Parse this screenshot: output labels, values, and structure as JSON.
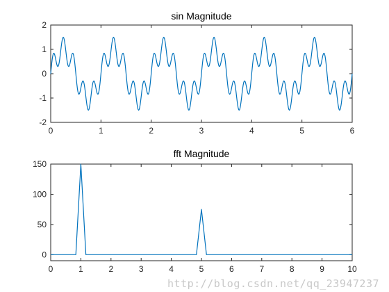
{
  "chart_data": [
    {
      "type": "line",
      "title": "sin Magnitude",
      "xlabel": "",
      "ylabel": "",
      "xlim": [
        0,
        6
      ],
      "ylim": [
        -2,
        2
      ],
      "xticks": [
        "0",
        "1",
        "2",
        "3",
        "4",
        "5",
        "6"
      ],
      "yticks": [
        "-2",
        "-1",
        "0",
        "1",
        "2"
      ],
      "grid": false,
      "color": "#0072BD",
      "series": [
        {
          "formula": "sin(2*pi*1*t) + 0.5*sin(2*pi*5*t)",
          "x_start": 0,
          "x_end": 6,
          "samples": 601
        }
      ]
    },
    {
      "type": "line",
      "title": "fft Magnitude",
      "xlabel": "",
      "ylabel": "",
      "xlim": [
        0,
        10
      ],
      "ylim": [
        -10,
        150
      ],
      "xticks": [
        "0",
        "1",
        "2",
        "3",
        "4",
        "5",
        "6",
        "7",
        "8",
        "9",
        "10"
      ],
      "yticks": [
        "0",
        "50",
        "100",
        "150"
      ],
      "grid": false,
      "color": "#0072BD",
      "series": [
        {
          "x": [
            0,
            0.8333,
            1.0,
            1.1667,
            4.8333,
            5.0,
            5.1667,
            10
          ],
          "y": [
            0,
            0,
            150,
            0,
            0,
            75,
            0,
            0
          ]
        }
      ]
    }
  ],
  "watermark": "http://blog.csdn.net/qq_23947237"
}
